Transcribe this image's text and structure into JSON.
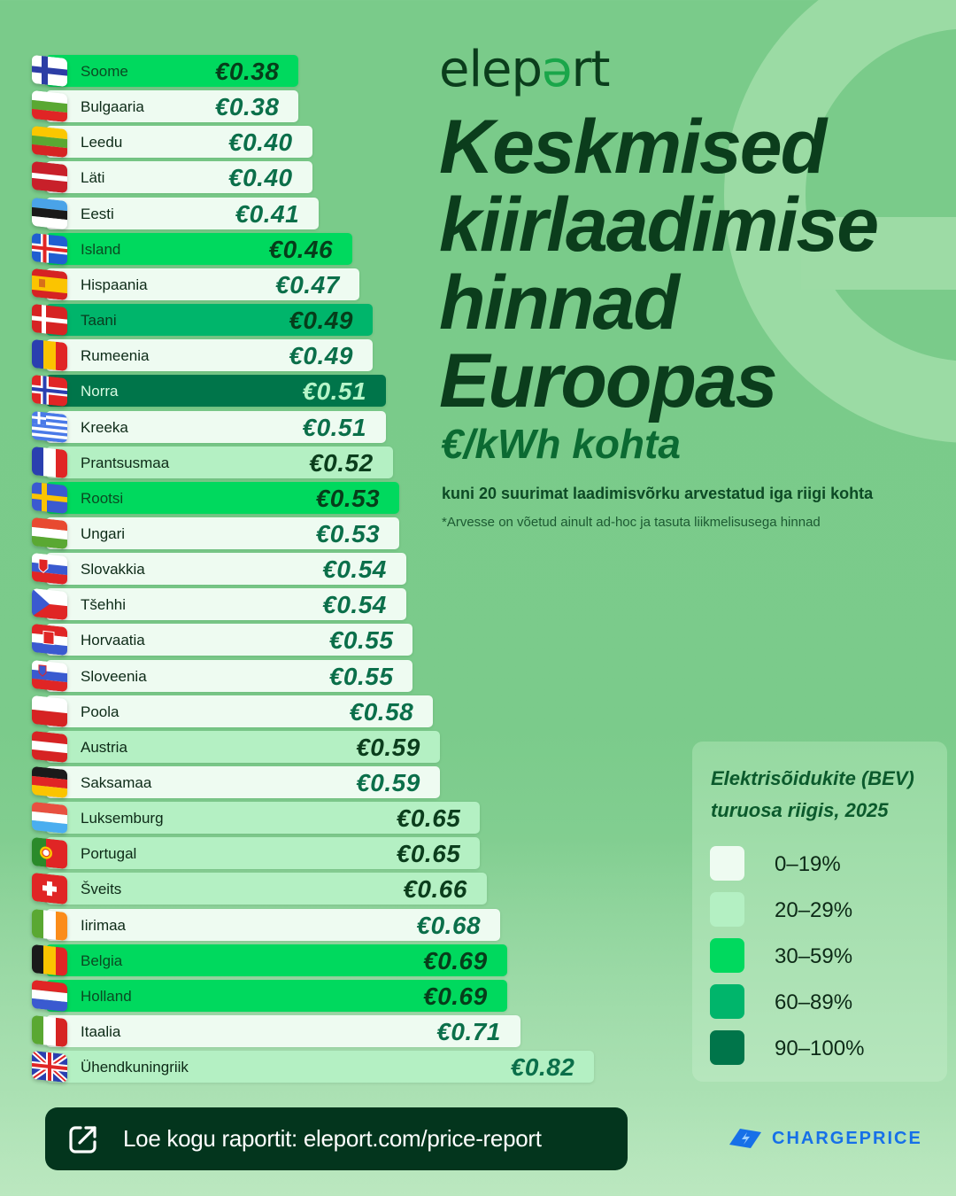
{
  "brand": {
    "logo_pre": "elep",
    "logo_o": "ə",
    "logo_post": "rt"
  },
  "header": {
    "title_lines": [
      "Keskmised",
      "kiirlaadimise",
      "hinnad",
      "Euroopas"
    ],
    "unit": "€/kWh kohta",
    "subtitle": "kuni 20 suurimat laadimisvõrku arvestatud iga riigi kohta",
    "note": "*Arvesse on võetud ainult ad-hoc ja tasuta liikmelisusega hinnad"
  },
  "legend": {
    "title": "Elektrisõidukite (BEV) turuosa riigis, 2025",
    "items": [
      {
        "label": "0–19%",
        "color": "#eefbf1"
      },
      {
        "label": "20–29%",
        "color": "#b4f0c3"
      },
      {
        "label": "30–59%",
        "color": "#00d95e"
      },
      {
        "label": "60–89%",
        "color": "#00b56b"
      },
      {
        "label": "90–100%",
        "color": "#00754a"
      }
    ]
  },
  "chart_data": {
    "type": "bar",
    "orientation": "horizontal",
    "title": "Keskmised kiirlaadimise hinnad Euroopas",
    "subtitle": "€/kWh kohta",
    "xlabel": "",
    "ylabel": "",
    "value_format": "€0.00",
    "color_encoding": "Elektrisõidukite (BEV) turuosa riigis, 2025",
    "categories": [
      "Soome",
      "Bulgaaria",
      "Leedu",
      "Läti",
      "Eesti",
      "Island",
      "Hispaania",
      "Taani",
      "Rumeenia",
      "Norra",
      "Kreeka",
      "Prantsusmaa",
      "Rootsi",
      "Ungari",
      "Slovakkia",
      "Tšehhi",
      "Horvaatia",
      "Sloveenia",
      "Poola",
      "Austria",
      "Saksamaa",
      "Luksemburg",
      "Portugal",
      "Šveits",
      "Iirimaa",
      "Belgia",
      "Holland",
      "Itaalia",
      "Ühendkuningriik"
    ],
    "values": [
      0.38,
      0.38,
      0.4,
      0.4,
      0.41,
      0.46,
      0.47,
      0.49,
      0.49,
      0.51,
      0.51,
      0.52,
      0.53,
      0.53,
      0.54,
      0.54,
      0.55,
      0.55,
      0.58,
      0.59,
      0.59,
      0.65,
      0.65,
      0.66,
      0.68,
      0.69,
      0.69,
      0.71,
      0.82
    ],
    "bev_share_tier": [
      "30–59%",
      "0–19%",
      "0–19%",
      "0–19%",
      "0–19%",
      "30–59%",
      "0–19%",
      "60–89%",
      "0–19%",
      "90–100%",
      "0–19%",
      "20–29%",
      "30–59%",
      "0–19%",
      "0–19%",
      "0–19%",
      "0–19%",
      "0–19%",
      "0–19%",
      "20–29%",
      "0–19%",
      "20–29%",
      "20–29%",
      "20–29%",
      "0–19%",
      "30–59%",
      "30–59%",
      "0–19%",
      "20–29%"
    ],
    "legend": [
      "0–19%",
      "20–29%",
      "30–59%",
      "60–89%",
      "90–100%"
    ],
    "grid": false
  },
  "rows": [
    {
      "country": "Soome",
      "price": "€0.38",
      "tier": 2,
      "flag": "fi"
    },
    {
      "country": "Bulgaaria",
      "price": "€0.38",
      "tier": 0,
      "flag": "bg"
    },
    {
      "country": "Leedu",
      "price": "€0.40",
      "tier": 0,
      "flag": "lt"
    },
    {
      "country": "Läti",
      "price": "€0.40",
      "tier": 0,
      "flag": "lv"
    },
    {
      "country": "Eesti",
      "price": "€0.41",
      "tier": 0,
      "flag": "ee"
    },
    {
      "country": "Island",
      "price": "€0.46",
      "tier": 2,
      "flag": "is"
    },
    {
      "country": "Hispaania",
      "price": "€0.47",
      "tier": 0,
      "flag": "es"
    },
    {
      "country": "Taani",
      "price": "€0.49",
      "tier": 3,
      "flag": "dk"
    },
    {
      "country": "Rumeenia",
      "price": "€0.49",
      "tier": 0,
      "flag": "ro"
    },
    {
      "country": "Norra",
      "price": "€0.51",
      "tier": 4,
      "flag": "no"
    },
    {
      "country": "Kreeka",
      "price": "€0.51",
      "tier": 0,
      "flag": "gr"
    },
    {
      "country": "Prantsusmaa",
      "price": "€0.52",
      "tier": 1,
      "flag": "fr"
    },
    {
      "country": "Rootsi",
      "price": "€0.53",
      "tier": 2,
      "flag": "se"
    },
    {
      "country": "Ungari",
      "price": "€0.53",
      "tier": 0,
      "flag": "hu"
    },
    {
      "country": "Slovakkia",
      "price": "€0.54",
      "tier": 0,
      "flag": "sk"
    },
    {
      "country": "Tšehhi",
      "price": "€0.54",
      "tier": 0,
      "flag": "cz"
    },
    {
      "country": "Horvaatia",
      "price": "€0.55",
      "tier": 0,
      "flag": "hr"
    },
    {
      "country": "Sloveenia",
      "price": "€0.55",
      "tier": 0,
      "flag": "si"
    },
    {
      "country": "Poola",
      "price": "€0.58",
      "tier": 0,
      "flag": "pl"
    },
    {
      "country": "Austria",
      "price": "€0.59",
      "tier": 1,
      "flag": "at"
    },
    {
      "country": "Saksamaa",
      "price": "€0.59",
      "tier": 0,
      "flag": "de"
    },
    {
      "country": "Luksemburg",
      "price": "€0.65",
      "tier": 1,
      "flag": "lu"
    },
    {
      "country": "Portugal",
      "price": "€0.65",
      "tier": 1,
      "flag": "pt"
    },
    {
      "country": "Šveits",
      "price": "€0.66",
      "tier": 1,
      "flag": "ch"
    },
    {
      "country": "Iirimaa",
      "price": "€0.68",
      "tier": 0,
      "flag": "ie"
    },
    {
      "country": "Belgia",
      "price": "€0.69",
      "tier": 2,
      "flag": "be"
    },
    {
      "country": "Holland",
      "price": "€0.69",
      "tier": 2,
      "flag": "nl"
    },
    {
      "country": "Itaalia",
      "price": "€0.71",
      "tier": 0,
      "flag": "it"
    },
    {
      "country": "Ühendkuningriik",
      "price": "€0.82",
      "tier": 1,
      "flag": "gb"
    }
  ],
  "cta": {
    "label": "Loe kogu raportit: eleport.com/price-report",
    "icon": "external-link-icon"
  },
  "partner": {
    "name": "CHARGEPRICE",
    "icon": "lightning-card-icon"
  }
}
